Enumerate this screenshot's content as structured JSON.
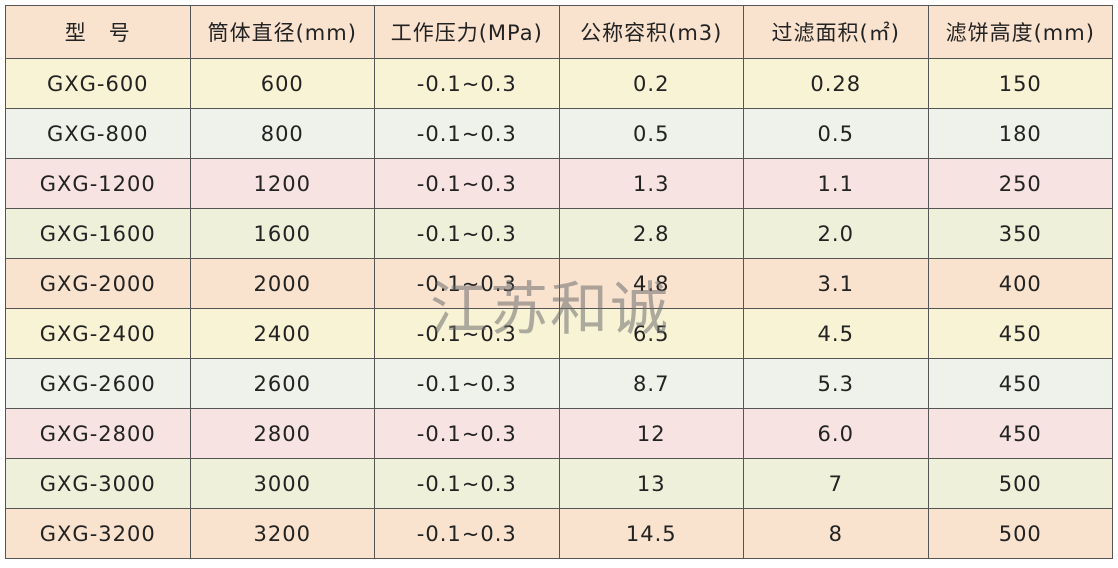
{
  "table": {
    "header": [
      "型　号",
      "筒体直径(mm)",
      "工作压力(MPa)",
      "公称容积(m3)",
      "过滤面积(㎡)",
      "滤饼高度(mm)"
    ],
    "rows": [
      [
        "GXG-600",
        "600",
        "-0.1~0.3",
        "0.2",
        "0.28",
        "150"
      ],
      [
        "GXG-800",
        "800",
        "-0.1~0.3",
        "0.5",
        "0.5",
        "180"
      ],
      [
        "GXG-1200",
        "1200",
        "-0.1~0.3",
        "1.3",
        "1.1",
        "250"
      ],
      [
        "GXG-1600",
        "1600",
        "-0.1~0.3",
        "2.8",
        "2.0",
        "350"
      ],
      [
        "GXG-2000",
        "2000",
        "-0.1~0.3",
        "4.8",
        "3.1",
        "400"
      ],
      [
        "GXG-2400",
        "2400",
        "-0.1~0.3",
        "6.5",
        "4.5",
        "450"
      ],
      [
        "GXG-2600",
        "2600",
        "-0.1~0.3",
        "8.7",
        "5.3",
        "450"
      ],
      [
        "GXG-2800",
        "2800",
        "-0.1~0.3",
        "12",
        "6.0",
        "450"
      ],
      [
        "GXG-3000",
        "3000",
        "-0.1~0.3",
        "13",
        "7",
        "500"
      ],
      [
        "GXG-3200",
        "3200",
        "-0.1~0.3",
        "14.5",
        "8",
        "500"
      ]
    ]
  },
  "watermark": "江苏和诚"
}
